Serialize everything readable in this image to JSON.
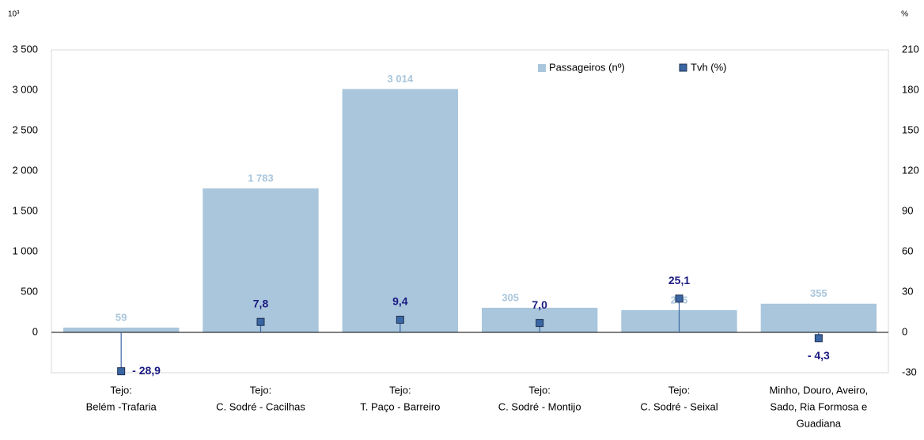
{
  "chart_data": {
    "type": "bar_line",
    "y_unit_label": "10³",
    "y2_unit_label": "%",
    "categories": [
      [
        "Tejo:",
        "Belém -Trafaria"
      ],
      [
        "Tejo:",
        "C. Sodré - Cacilhas"
      ],
      [
        "Tejo:",
        "T. Paço - Barreiro"
      ],
      [
        "Tejo:",
        "C. Sodré - Montijo"
      ],
      [
        "Tejo:",
        "C. Sodré - Seixal"
      ],
      [
        "Minho, Douro, Aveiro,",
        "Sado, Ria Formosa e",
        "Guadiana"
      ]
    ],
    "series": [
      {
        "name": "Passageiros (nº)",
        "type": "bar",
        "color": "#a9c6dc",
        "label_color": "#a9c6dc",
        "values": [
          59,
          1783,
          3014,
          305,
          276,
          355
        ],
        "value_labels": [
          "59",
          "1 783",
          "3 014",
          "305",
          "276",
          "355"
        ]
      },
      {
        "name": "Tvh (%)",
        "type": "marker",
        "axis": "y2",
        "color": "#3a66a3",
        "label_color": "#1a1a80",
        "values": [
          -28.9,
          7.8,
          9.4,
          7.0,
          25.1,
          -4.3
        ],
        "value_labels": [
          "- 28,9",
          "7,8",
          "9,4",
          "7,0",
          "25,1",
          "- 4,3"
        ]
      }
    ],
    "ylim": [
      -500,
      3500
    ],
    "yticks": [
      {
        "value": -500,
        "label": ""
      },
      0,
      500,
      {
        "value": 1000,
        "label": "1 000"
      },
      {
        "value": 1500,
        "label": "1 500"
      },
      {
        "value": 2000,
        "label": "2 000"
      },
      {
        "value": 2500,
        "label": "2 500"
      },
      {
        "value": 3000,
        "label": "3 000"
      },
      {
        "value": 3500,
        "label": "3 500"
      }
    ],
    "y2lim": [
      -30,
      210
    ],
    "y2ticks": [
      -30,
      0,
      30,
      60,
      90,
      120,
      150,
      180,
      210
    ],
    "grid": false,
    "legend": "top-right"
  }
}
